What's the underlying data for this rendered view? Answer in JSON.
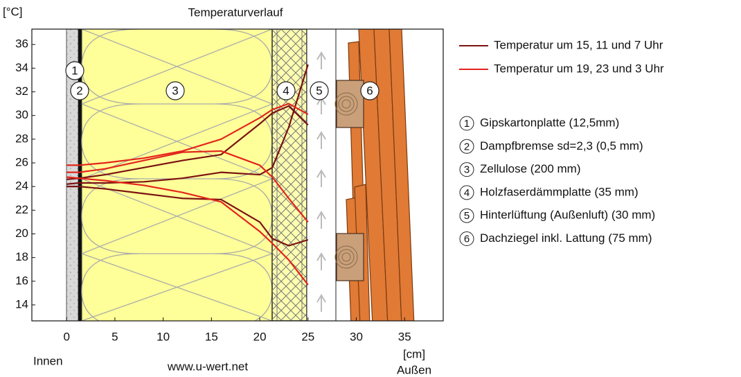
{
  "chart_data": {
    "type": "line",
    "title": "Temperaturverlauf",
    "y_label": "[°C]",
    "x_label": "[cm]",
    "inside_label": "Innen",
    "outside_label": "Außen",
    "source": "www.u-wert.net",
    "x": [
      0,
      1.3,
      4,
      8,
      12,
      16,
      20,
      21.3,
      23,
      25
    ],
    "series": [
      {
        "name": "Temperatur um 15, 11 und 7 Uhr",
        "color": "#7a1212",
        "values": [
          [
            24.2,
            24.3,
            24.3,
            24.4,
            24.7,
            25.2,
            25.0,
            25.6,
            29.0,
            34.3
          ],
          [
            24.6,
            24.7,
            25.0,
            25.6,
            26.2,
            26.7,
            29.3,
            30.2,
            30.8,
            29.2
          ],
          [
            24.0,
            24.0,
            23.8,
            23.4,
            23.0,
            22.9,
            21.0,
            19.6,
            19.0,
            19.5
          ]
        ]
      },
      {
        "name": "Temperatur um 19, 23 und 3 Uhr",
        "color": "#e3241b",
        "values": [
          [
            25.8,
            25.8,
            26.0,
            26.4,
            27.0,
            28.0,
            29.8,
            30.5,
            31.0,
            30.1
          ],
          [
            25.2,
            25.2,
            25.5,
            26.2,
            26.9,
            27.0,
            25.8,
            24.8,
            23.0,
            21.0
          ],
          [
            24.8,
            24.7,
            24.5,
            24.1,
            23.5,
            22.7,
            20.2,
            19.2,
            17.8,
            15.7
          ]
        ]
      }
    ],
    "xlim": [
      -3.6,
      39
    ],
    "ylim": [
      12.65,
      37.3
    ],
    "xticks": [
      0,
      5,
      10,
      15,
      20,
      25,
      30,
      35
    ],
    "yticks": [
      14,
      16,
      18,
      20,
      22,
      24,
      26,
      28,
      30,
      32,
      34,
      36
    ],
    "grid": false,
    "layers": [
      {
        "number": "1",
        "label": "Gipskartonplatte (12,5mm)"
      },
      {
        "number": "2",
        "label": "Dampfbremse sd=2,3 (0,5 mm)"
      },
      {
        "number": "3",
        "label": "Zellulose (200 mm)"
      },
      {
        "number": "4",
        "label": "Holzfaserdämmplatte (35 mm)"
      },
      {
        "number": "5",
        "label": "Hinterlüftung (Außenluft) (30 mm)"
      },
      {
        "number": "6",
        "label": "Dachziegel inkl. Lattung (75 mm)"
      }
    ]
  }
}
